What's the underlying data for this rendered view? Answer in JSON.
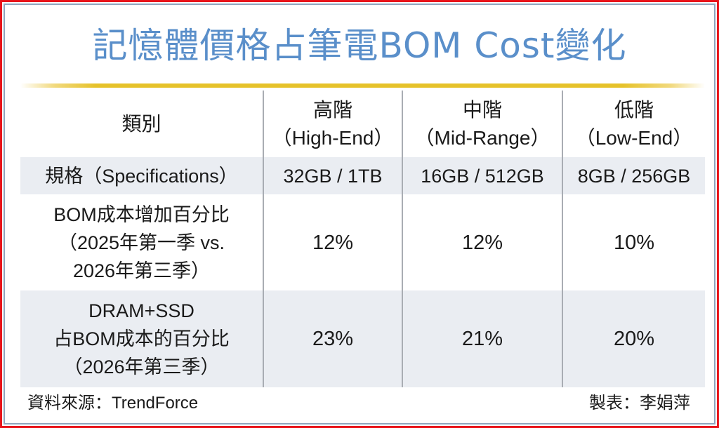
{
  "title": "記憶體價格占筆電BOM Cost變化",
  "colors": {
    "title": "#5a8fca",
    "accent_line": "#e6c22a",
    "outer_border": "#e8141b",
    "inner_border": "#8fa6bf",
    "grey_row": "#eaedf2"
  },
  "table": {
    "headers": [
      {
        "line1": "類別",
        "line2": ""
      },
      {
        "line1": "高階",
        "line2": "（High-End）"
      },
      {
        "line1": "中階",
        "line2": "（Mid-Range）"
      },
      {
        "line1": "低階",
        "line2": "（Low-End）"
      }
    ],
    "rows": [
      {
        "label_lines": [
          "規格（Specifications）"
        ],
        "values": [
          "32GB / 1TB",
          "16GB / 512GB",
          "8GB / 256GB"
        ]
      },
      {
        "label_lines": [
          "BOM成本增加百分比",
          "（2025年第一季 vs.",
          "2026年第三季）"
        ],
        "values": [
          "12%",
          "12%",
          "10%"
        ]
      },
      {
        "label_lines": [
          "DRAM+SSD",
          "占BOM成本的百分比",
          "（2026年第三季）"
        ],
        "values": [
          "23%",
          "21%",
          "20%"
        ]
      }
    ]
  },
  "footer": {
    "source": "資料來源：TrendForce",
    "credit": "製表：李娟萍"
  }
}
